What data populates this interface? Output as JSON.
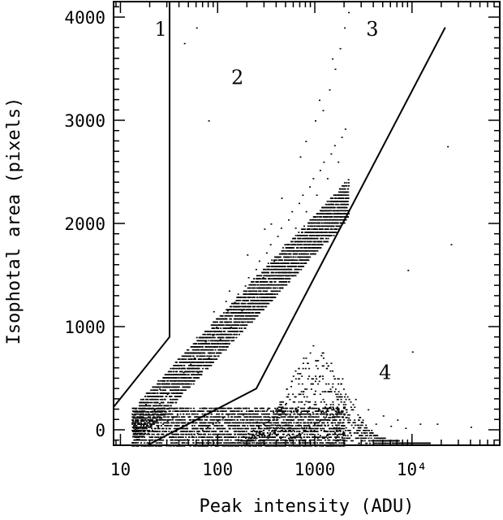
{
  "chart_data": {
    "type": "scatter",
    "title": "",
    "xlabel": "Peak intensity (ADU)",
    "ylabel": "Isophotal area (pixels)",
    "x_scale": "log",
    "xlim": [
      8.5,
      80000
    ],
    "ylim": [
      -150,
      4150
    ],
    "x_ticks": [
      {
        "value": 10,
        "label": "10"
      },
      {
        "value": 100,
        "label": "100"
      },
      {
        "value": 1000,
        "label": "1000"
      },
      {
        "value": 10000,
        "label": "10⁴"
      }
    ],
    "y_ticks": [
      {
        "value": 0,
        "label": "0"
      },
      {
        "value": 1000,
        "label": "1000"
      },
      {
        "value": 2000,
        "label": "2000"
      },
      {
        "value": 3000,
        "label": "3000"
      },
      {
        "value": 4000,
        "label": "4000"
      }
    ],
    "grid": false,
    "region_labels": [
      {
        "text": "1",
        "x": 26,
        "y": 3820
      },
      {
        "text": "2",
        "x": 160,
        "y": 3350
      },
      {
        "text": "3",
        "x": 3900,
        "y": 3820
      },
      {
        "text": "4",
        "x": 5300,
        "y": 490
      }
    ],
    "boundary_lines": [
      {
        "name": "boundary-1",
        "points": [
          [
            8.5,
            220
          ],
          [
            32,
            900
          ],
          [
            32,
            4150
          ]
        ]
      },
      {
        "name": "boundary-2",
        "points": [
          [
            19,
            -150
          ],
          [
            250,
            400
          ],
          [
            22000,
            3900
          ]
        ]
      }
    ],
    "point_groups": [
      {
        "name": "main-sequence",
        "x_min": 13,
        "x_max": 2200,
        "relation": "area ≈ 1000·log10(peak/12.5) ± spread",
        "points": [
          [
            14,
            10
          ],
          [
            16,
            60
          ],
          [
            18,
            120
          ],
          [
            20,
            40
          ],
          [
            22,
            200
          ],
          [
            25,
            260
          ],
          [
            28,
            150
          ],
          [
            30,
            350
          ],
          [
            33,
            420
          ],
          [
            36,
            300
          ],
          [
            40,
            480
          ],
          [
            44,
            560
          ],
          [
            48,
            420
          ],
          [
            52,
            640
          ],
          [
            57,
            700
          ],
          [
            62,
            560
          ],
          [
            68,
            780
          ],
          [
            74,
            860
          ],
          [
            80,
            700
          ],
          [
            88,
            920
          ],
          [
            96,
            1000
          ],
          [
            105,
            880
          ],
          [
            115,
            1080
          ],
          [
            125,
            1160
          ],
          [
            135,
            1000
          ],
          [
            148,
            1240
          ],
          [
            160,
            1320
          ],
          [
            175,
            1160
          ],
          [
            190,
            1400
          ],
          [
            205,
            1480
          ],
          [
            225,
            1320
          ],
          [
            245,
            1560
          ],
          [
            265,
            1640
          ],
          [
            290,
            1480
          ],
          [
            315,
            1720
          ],
          [
            345,
            1800
          ],
          [
            375,
            1640
          ],
          [
            410,
            1880
          ],
          [
            445,
            1960
          ],
          [
            485,
            1800
          ],
          [
            530,
            2040
          ],
          [
            575,
            2120
          ],
          [
            625,
            1960
          ],
          [
            680,
            2200
          ],
          [
            740,
            2280
          ],
          [
            805,
            2120
          ],
          [
            875,
            2360
          ],
          [
            950,
            2440
          ],
          [
            1030,
            2280
          ],
          [
            1120,
            2520
          ],
          [
            1220,
            2600
          ],
          [
            1330,
            2440
          ],
          [
            1450,
            2680
          ],
          [
            1580,
            2760
          ],
          [
            1720,
            2600
          ],
          [
            1870,
            2840
          ],
          [
            2030,
            2920
          ],
          [
            1200,
            3100
          ],
          [
            1400,
            3300
          ],
          [
            1600,
            3500
          ],
          [
            1800,
            3700
          ],
          [
            2000,
            3900
          ],
          [
            2200,
            4050
          ],
          [
            60,
            900
          ],
          [
            90,
            1150
          ],
          [
            130,
            1350
          ],
          [
            200,
            1700
          ],
          [
            300,
            1950
          ],
          [
            450,
            2250
          ],
          [
            700,
            2650
          ],
          [
            1000,
            3000
          ],
          [
            1500,
            3600
          ],
          [
            40,
            600
          ],
          [
            25,
            400
          ],
          [
            18,
            250
          ],
          [
            15,
            100
          ],
          [
            120,
            1250
          ],
          [
            350,
            2000
          ],
          [
            800,
            2800
          ],
          [
            1100,
            3200
          ]
        ]
      },
      {
        "name": "bottom-rows",
        "x_min": 13,
        "x_max": 2000,
        "relation": "area < 250, dense horizontal rows",
        "points": [
          [
            13,
            -120
          ],
          [
            15,
            -90
          ],
          [
            17,
            -60
          ],
          [
            19,
            -30
          ],
          [
            21,
            0
          ],
          [
            24,
            30
          ],
          [
            27,
            60
          ],
          [
            30,
            90
          ],
          [
            34,
            120
          ],
          [
            38,
            150
          ],
          [
            43,
            -120
          ],
          [
            48,
            -90
          ],
          [
            54,
            -60
          ],
          [
            61,
            -30
          ],
          [
            69,
            0
          ],
          [
            78,
            30
          ],
          [
            88,
            60
          ],
          [
            99,
            90
          ],
          [
            112,
            120
          ],
          [
            126,
            150
          ],
          [
            142,
            -120
          ],
          [
            160,
            -90
          ],
          [
            181,
            -60
          ],
          [
            204,
            -30
          ],
          [
            230,
            0
          ],
          [
            260,
            30
          ],
          [
            293,
            60
          ],
          [
            331,
            90
          ],
          [
            373,
            120
          ],
          [
            421,
            150
          ],
          [
            475,
            -120
          ],
          [
            536,
            -90
          ],
          [
            605,
            -60
          ],
          [
            683,
            -30
          ],
          [
            771,
            0
          ],
          [
            870,
            30
          ],
          [
            982,
            60
          ],
          [
            1108,
            90
          ],
          [
            1250,
            120
          ],
          [
            1411,
            150
          ],
          [
            1592,
            -120
          ],
          [
            1797,
            -90
          ],
          [
            14,
            180
          ],
          [
            16,
            210
          ],
          [
            20,
            240
          ],
          [
            23,
            -150
          ],
          [
            26,
            -150
          ],
          [
            29,
            180
          ],
          [
            31,
            -150
          ],
          [
            35,
            210
          ]
        ]
      },
      {
        "name": "cloud-4",
        "x_min": 150,
        "x_max": 15000,
        "relation": "area < 900, saturated peaks",
        "points": [
          [
            180,
            150
          ],
          [
            250,
            80
          ],
          [
            320,
            200
          ],
          [
            400,
            120
          ],
          [
            500,
            260
          ],
          [
            600,
            180
          ],
          [
            700,
            350
          ],
          [
            800,
            280
          ],
          [
            900,
            450
          ],
          [
            1000,
            380
          ],
          [
            1100,
            520
          ],
          [
            1200,
            300
          ],
          [
            1300,
            600
          ],
          [
            1400,
            220
          ],
          [
            1500,
            420
          ],
          [
            1700,
            160
          ],
          [
            1900,
            500
          ],
          [
            2200,
            120
          ],
          [
            2600,
            300
          ],
          [
            3000,
            80
          ],
          [
            3500,
            200
          ],
          [
            4200,
            60
          ],
          [
            5000,
            140
          ],
          [
            6000,
            40
          ],
          [
            7000,
            100
          ],
          [
            8500,
            20
          ],
          [
            10000,
            760
          ],
          [
            12000,
            60
          ],
          [
            800,
            700
          ],
          [
            950,
            820
          ]
        ]
      },
      {
        "name": "outliers",
        "x_min": 40,
        "x_max": 60000,
        "relation": "sparse",
        "points": [
          [
            45,
            3750
          ],
          [
            80,
            3000
          ],
          [
            23000,
            2750
          ],
          [
            25000,
            1800
          ],
          [
            40000,
            30
          ],
          [
            18000,
            60
          ],
          [
            60,
            3900
          ],
          [
            9000,
            1550
          ]
        ]
      }
    ]
  }
}
